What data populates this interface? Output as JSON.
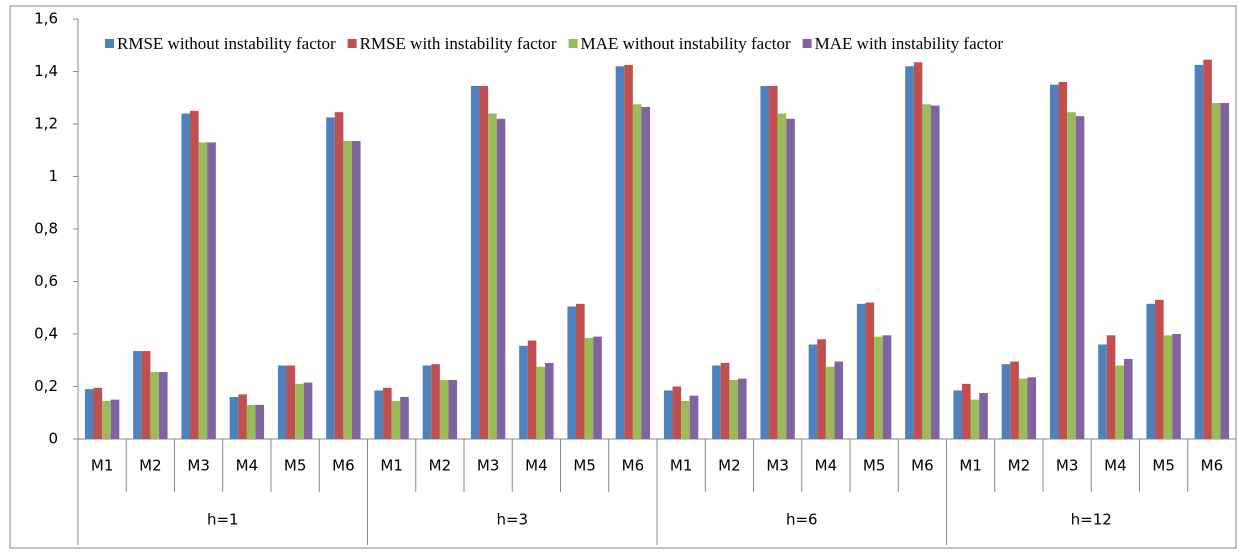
{
  "chart_data": {
    "type": "bar",
    "categories": [
      "M1",
      "M2",
      "M3",
      "M4",
      "M5",
      "M6",
      "M1",
      "M2",
      "M3",
      "M4",
      "M5",
      "M6",
      "M1",
      "M2",
      "M3",
      "M4",
      "M5",
      "M6",
      "M1",
      "M2",
      "M3",
      "M4",
      "M5",
      "M6"
    ],
    "group_labels": [
      "h=1",
      "h=3",
      "h=6",
      "h=12"
    ],
    "series": [
      {
        "name": "RMSE without instability factor",
        "color": "#4f81bd",
        "values": [
          0.19,
          0.335,
          1.24,
          0.16,
          0.28,
          1.225,
          0.185,
          0.28,
          1.345,
          0.355,
          0.505,
          1.42,
          0.185,
          0.28,
          1.345,
          0.36,
          0.515,
          1.42,
          0.185,
          0.285,
          1.35,
          0.36,
          0.515,
          1.425
        ]
      },
      {
        "name": "RMSE with instability factor",
        "color": "#c0504d",
        "values": [
          0.195,
          0.335,
          1.25,
          0.17,
          0.28,
          1.245,
          0.195,
          0.285,
          1.345,
          0.375,
          0.515,
          1.425,
          0.2,
          0.29,
          1.345,
          0.38,
          0.52,
          1.435,
          0.21,
          0.295,
          1.36,
          0.395,
          0.53,
          1.445
        ]
      },
      {
        "name": "MAE without instability factor",
        "color": "#9bbb59",
        "values": [
          0.145,
          0.255,
          1.13,
          0.13,
          0.21,
          1.135,
          0.145,
          0.225,
          1.24,
          0.275,
          0.385,
          1.275,
          0.145,
          0.225,
          1.24,
          0.275,
          0.39,
          1.275,
          0.15,
          0.23,
          1.245,
          0.28,
          0.395,
          1.28
        ]
      },
      {
        "name": "MAE with instability factor",
        "color": "#8064a2",
        "values": [
          0.15,
          0.255,
          1.13,
          0.13,
          0.215,
          1.135,
          0.16,
          0.225,
          1.22,
          0.29,
          0.39,
          1.265,
          0.165,
          0.23,
          1.22,
          0.295,
          0.395,
          1.27,
          0.175,
          0.235,
          1.23,
          0.305,
          0.4,
          1.28
        ]
      }
    ],
    "ylim": [
      0,
      1.6
    ],
    "yticks": [
      0,
      {
        "value": 0.2,
        "label": "0,2"
      },
      {
        "value": 0.4,
        "label": "0,4"
      },
      {
        "value": 0.6,
        "label": "0,6"
      },
      {
        "value": 0.8,
        "label": "0,8"
      },
      1,
      {
        "value": 1.2,
        "label": "1,2"
      },
      {
        "value": 1.4,
        "label": "1,4"
      },
      {
        "value": 1.6,
        "label": "1,6"
      }
    ],
    "grid": false,
    "legend": "top"
  }
}
